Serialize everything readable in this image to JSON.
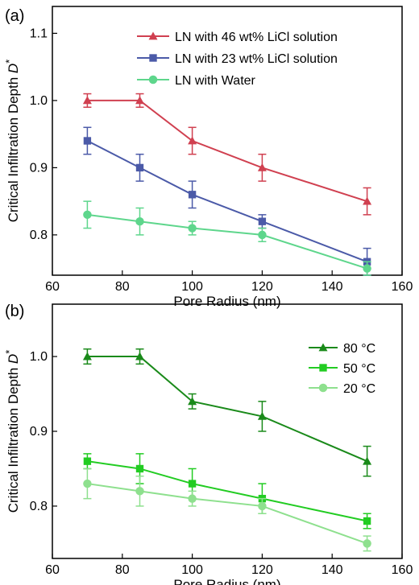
{
  "chart_data": [
    {
      "type": "line",
      "panel_label": "(a)",
      "xlabel": "Pore Radius (nm)",
      "ylabel": "Critical Infiltration Depth D*",
      "xlim": [
        60,
        160
      ],
      "ylim": [
        0.74,
        1.14
      ],
      "xticks": [
        60,
        80,
        100,
        120,
        140,
        160
      ],
      "yticks": [
        0.8,
        0.9,
        1.0,
        1.1
      ],
      "legend_position": "top-right",
      "x": [
        70,
        85,
        100,
        120,
        150
      ],
      "series": [
        {
          "name": "LN with 46 wt% LiCl solution",
          "marker": "triangle",
          "color": "#d04050",
          "values": [
            1.0,
            1.0,
            0.94,
            0.9,
            0.85
          ],
          "errors": [
            0.01,
            0.01,
            0.02,
            0.02,
            0.02
          ]
        },
        {
          "name": "LN with 23 wt% LiCl solution",
          "marker": "square",
          "color": "#4b5aa8",
          "values": [
            0.94,
            0.9,
            0.86,
            0.82,
            0.76
          ],
          "errors": [
            0.02,
            0.02,
            0.02,
            0.01,
            0.02
          ]
        },
        {
          "name": "LN with Water",
          "marker": "circle",
          "color": "#5ed68c",
          "values": [
            0.83,
            0.82,
            0.81,
            0.8,
            0.75
          ],
          "errors": [
            0.02,
            0.02,
            0.01,
            0.01,
            0.01
          ]
        }
      ]
    },
    {
      "type": "line",
      "panel_label": "(b)",
      "xlabel": "Pore Radius (nm)",
      "ylabel": "Critical Infiltration Depth D*",
      "xlim": [
        60,
        160
      ],
      "ylim": [
        0.73,
        1.07
      ],
      "xticks": [
        60,
        80,
        100,
        120,
        140,
        160
      ],
      "yticks": [
        0.8,
        0.9,
        1.0
      ],
      "legend_position": "top-right",
      "x": [
        70,
        85,
        100,
        120,
        150
      ],
      "series": [
        {
          "name": "80 °C",
          "marker": "triangle",
          "color": "#1a8a1a",
          "values": [
            1.0,
            1.0,
            0.94,
            0.92,
            0.86
          ],
          "errors": [
            0.01,
            0.01,
            0.01,
            0.02,
            0.02
          ]
        },
        {
          "name": "50 °C",
          "marker": "square",
          "color": "#22cc22",
          "values": [
            0.86,
            0.85,
            0.83,
            0.81,
            0.78
          ],
          "errors": [
            0.01,
            0.02,
            0.02,
            0.02,
            0.01
          ]
        },
        {
          "name": "20 °C",
          "marker": "circle",
          "color": "#8ee08e",
          "values": [
            0.83,
            0.82,
            0.81,
            0.8,
            0.75
          ],
          "errors": [
            0.02,
            0.02,
            0.01,
            0.01,
            0.01
          ]
        }
      ]
    }
  ]
}
